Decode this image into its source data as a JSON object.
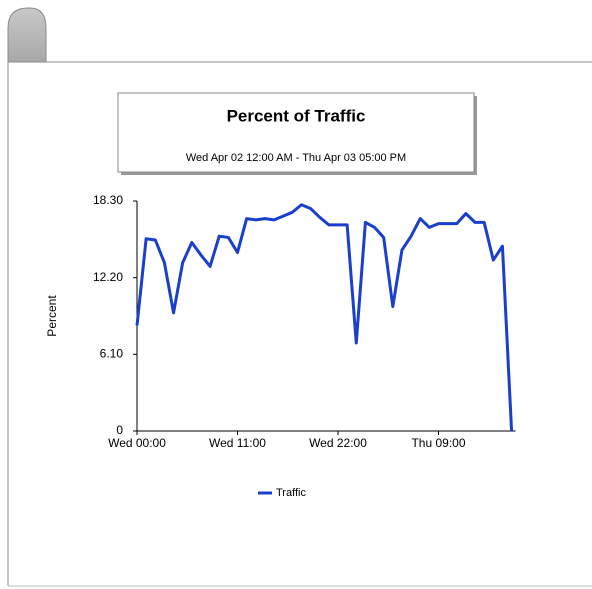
{
  "chart_data": {
    "type": "line",
    "title": "Percent of Traffic",
    "subtitle": "Wed Apr 02 12:00 AM - Thu Apr 03 05:00 PM",
    "y_label": "Percent",
    "categories": [
      "Wed 00:00",
      null,
      null,
      null,
      null,
      null,
      null,
      null,
      null,
      null,
      null,
      "Wed 11:00",
      null,
      null,
      null,
      null,
      null,
      null,
      null,
      null,
      null,
      null,
      "Wed 22:00",
      null,
      null,
      null,
      null,
      null,
      null,
      null,
      null,
      null,
      null,
      "Thu 09:00",
      null,
      null,
      null,
      null,
      null,
      null,
      null,
      null
    ],
    "series": [
      {
        "name": "Traffic",
        "color": "#1a3fcf",
        "values": [
          8.4,
          15.3,
          15.2,
          13.4,
          9.4,
          13.4,
          15.0,
          14.0,
          13.1,
          15.5,
          15.4,
          14.2,
          16.9,
          16.8,
          16.9,
          16.8,
          17.1,
          17.4,
          18.0,
          17.7,
          17.0,
          16.4,
          16.4,
          16.4,
          7.0,
          16.6,
          16.2,
          15.4,
          9.9,
          14.4,
          15.5,
          16.9,
          16.2,
          16.5,
          16.5,
          16.5,
          17.3,
          16.6,
          16.6,
          13.6,
          14.7,
          0
        ]
      }
    ],
    "ylim": [
      0,
      18.3
    ],
    "yticks": [
      0,
      {
        "value": 6.1,
        "label": "6.10"
      },
      {
        "value": 12.2,
        "label": "12.20"
      },
      {
        "value": 18.3,
        "label": "18.30"
      }
    ]
  }
}
